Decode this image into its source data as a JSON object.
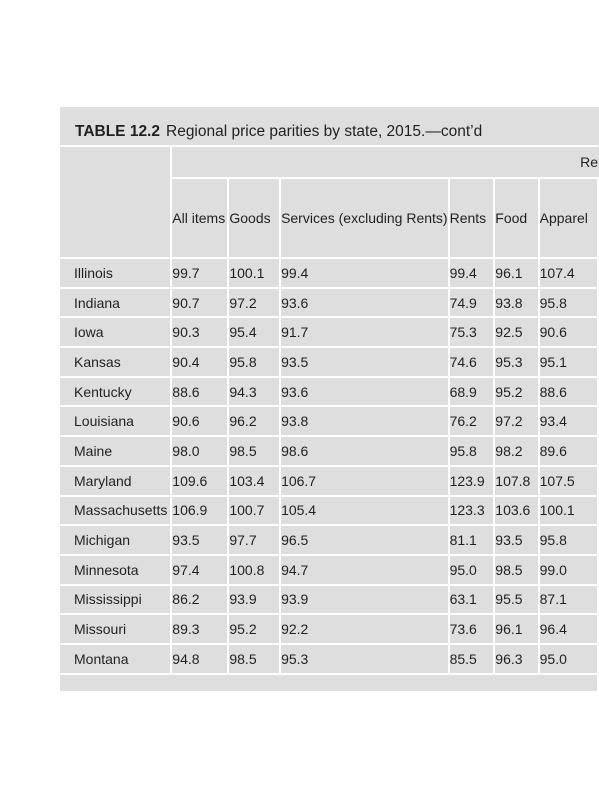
{
  "table": {
    "label": "TABLE 12.2",
    "caption": "Regional price parities by state, 2015.—cont’d",
    "group_header": "Re",
    "columns": [
      "All items",
      "Goods",
      "Services (excluding Rents)",
      "Rents",
      "Food",
      "Apparel"
    ],
    "rows": [
      {
        "state": "Illinois",
        "values": [
          "99.7",
          "100.1",
          "99.4",
          "99.4",
          "96.1",
          "107.4"
        ]
      },
      {
        "state": "Indiana",
        "values": [
          "90.7",
          "97.2",
          "93.6",
          "74.9",
          "93.8",
          "95.8"
        ]
      },
      {
        "state": "Iowa",
        "values": [
          "90.3",
          "95.4",
          "91.7",
          "75.3",
          "92.5",
          "90.6"
        ]
      },
      {
        "state": "Kansas",
        "values": [
          "90.4",
          "95.8",
          "93.5",
          "74.6",
          "95.3",
          "95.1"
        ]
      },
      {
        "state": "Kentucky",
        "values": [
          "88.6",
          "94.3",
          "93.6",
          "68.9",
          "95.2",
          "88.6"
        ]
      },
      {
        "state": "Louisiana",
        "values": [
          "90.6",
          "96.2",
          "93.8",
          "76.2",
          "97.2",
          "93.4"
        ]
      },
      {
        "state": "Maine",
        "values": [
          "98.0",
          "98.5",
          "98.6",
          "95.8",
          "98.2",
          "89.6"
        ]
      },
      {
        "state": "Maryland",
        "values": [
          "109.6",
          "103.4",
          "106.7",
          "123.9",
          "107.8",
          "107.5"
        ]
      },
      {
        "state": "Massachusetts",
        "values": [
          "106.9",
          "100.7",
          "105.4",
          "123.3",
          "103.6",
          "100.1"
        ]
      },
      {
        "state": "Michigan",
        "values": [
          "93.5",
          "97.7",
          "96.5",
          "81.1",
          "93.5",
          "95.8"
        ]
      },
      {
        "state": "Minnesota",
        "values": [
          "97.4",
          "100.8",
          "94.7",
          "95.0",
          "98.5",
          "99.0"
        ]
      },
      {
        "state": "Mississippi",
        "values": [
          "86.2",
          "93.9",
          "93.9",
          "63.1",
          "95.5",
          "87.1"
        ]
      },
      {
        "state": "Missouri",
        "values": [
          "89.3",
          "95.2",
          "92.2",
          "73.6",
          "96.1",
          "96.4"
        ]
      },
      {
        "state": "Montana",
        "values": [
          "94.8",
          "98.5",
          "95.3",
          "85.5",
          "96.3",
          "95.0"
        ]
      }
    ]
  }
}
